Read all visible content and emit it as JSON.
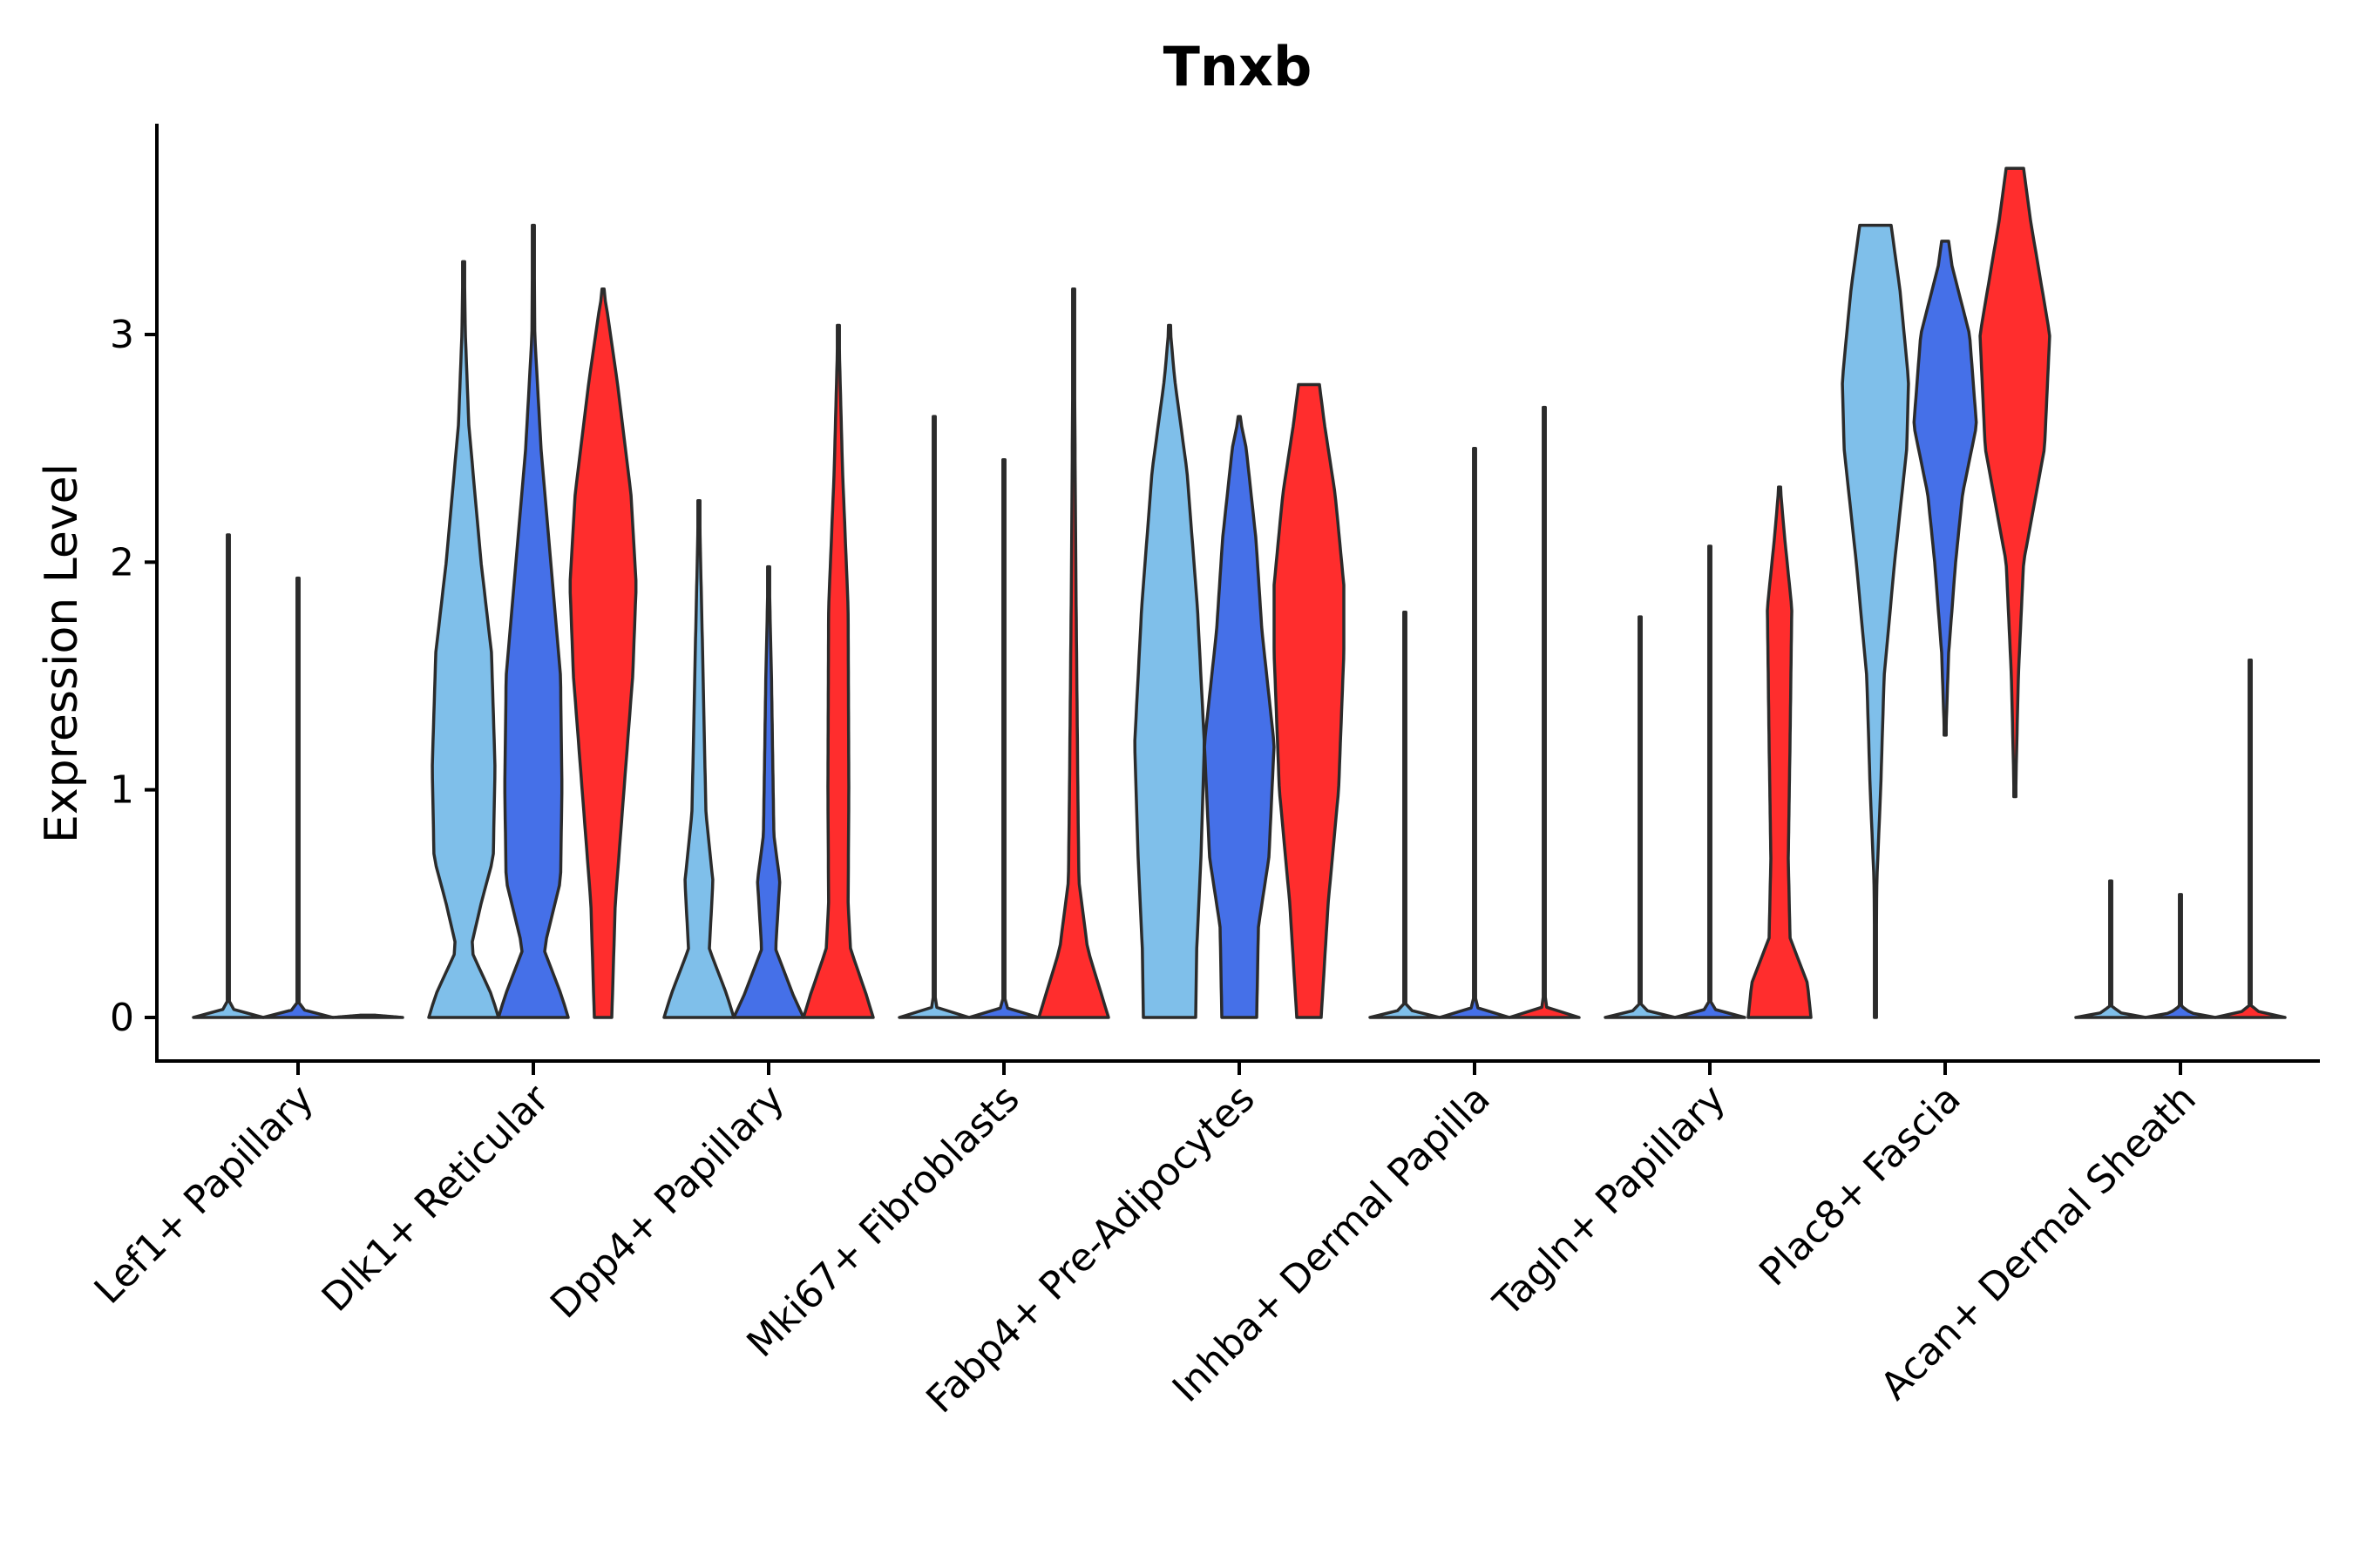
{
  "chart_data": {
    "type": "violin",
    "title": "Tnxb",
    "xlabel": "",
    "ylabel": "Expression Level",
    "ylim": [
      -0.19,
      3.92
    ],
    "yticks": [
      0,
      1,
      2,
      3
    ],
    "grid": false,
    "legend": "none",
    "series_colors": [
      "#7fbfea",
      "#4570e8",
      "#ff2d2d"
    ],
    "categories": [
      "Lef1+ Papillary",
      "Dlk1+ Reticular",
      "Dpp4+ Papillary",
      "Mki67+ Fibroblasts",
      "Fabp4+ Pre-Adipocytes",
      "Inhba+ Dermal Papilla",
      "Tagln+ Papillary",
      "Plac8+ Fascia",
      "Acan+ Dermal Sheath"
    ],
    "violins": [
      [
        {
          "min": 0,
          "max": 2.12,
          "profile": [
            [
              0,
              1.0
            ],
            [
              0.02,
              0.3
            ],
            [
              0.05,
              0.02
            ],
            [
              2.12,
              0.005
            ]
          ]
        },
        {
          "min": 0,
          "max": 1.93,
          "profile": [
            [
              0,
              1.0
            ],
            [
              0.02,
              0.3
            ],
            [
              0.05,
              0.02
            ],
            [
              1.93,
              0.005
            ]
          ]
        },
        {
          "min": 0,
          "max": 0.01,
          "profile": [
            [
              0,
              1.0
            ],
            [
              0.01,
              0.2
            ]
          ]
        }
      ],
      [
        {
          "min": 0,
          "max": 3.32,
          "profile": [
            [
              0,
              1.0
            ],
            [
              0.1,
              0.8
            ],
            [
              0.3,
              0.2
            ],
            [
              0.5,
              0.5
            ],
            [
              0.7,
              0.85
            ],
            [
              1.1,
              0.9
            ],
            [
              1.6,
              0.8
            ],
            [
              2.0,
              0.5
            ],
            [
              2.6,
              0.15
            ],
            [
              3.0,
              0.05
            ],
            [
              3.32,
              0.02
            ]
          ]
        },
        {
          "min": 0,
          "max": 3.48,
          "profile": [
            [
              0,
              1.0
            ],
            [
              0.1,
              0.8
            ],
            [
              0.3,
              0.3
            ],
            [
              0.6,
              0.78
            ],
            [
              1.0,
              0.82
            ],
            [
              1.5,
              0.78
            ],
            [
              2.0,
              0.5
            ],
            [
              2.5,
              0.22
            ],
            [
              3.0,
              0.04
            ],
            [
              3.48,
              0.02
            ]
          ]
        },
        {
          "min": 0,
          "max": 3.2,
          "profile": [
            [
              0,
              0.25
            ],
            [
              0.5,
              0.35
            ],
            [
              1.0,
              0.6
            ],
            [
              1.5,
              0.85
            ],
            [
              1.9,
              0.95
            ],
            [
              2.3,
              0.8
            ],
            [
              2.8,
              0.4
            ],
            [
              3.1,
              0.12
            ],
            [
              3.2,
              0.0
            ]
          ]
        }
      ],
      [
        {
          "min": 0,
          "max": 2.27,
          "profile": [
            [
              0,
              1.0
            ],
            [
              0.1,
              0.8
            ],
            [
              0.3,
              0.3
            ],
            [
              0.6,
              0.4
            ],
            [
              0.9,
              0.2
            ],
            [
              1.5,
              0.12
            ],
            [
              2.27,
              0.01
            ]
          ]
        },
        {
          "min": 0,
          "max": 1.98,
          "profile": [
            [
              0,
              1.0
            ],
            [
              0.1,
              0.7
            ],
            [
              0.3,
              0.2
            ],
            [
              0.6,
              0.32
            ],
            [
              0.8,
              0.15
            ],
            [
              1.5,
              0.08
            ],
            [
              1.98,
              0.01
            ]
          ]
        },
        {
          "min": 0,
          "max": 3.04,
          "profile": [
            [
              0,
              1.0
            ],
            [
              0.1,
              0.8
            ],
            [
              0.3,
              0.35
            ],
            [
              0.5,
              0.28
            ],
            [
              1.0,
              0.3
            ],
            [
              1.8,
              0.28
            ],
            [
              2.4,
              0.12
            ],
            [
              3.04,
              0.01
            ]
          ]
        }
      ],
      [
        {
          "min": 0,
          "max": 2.64,
          "profile": [
            [
              0,
              1.0
            ],
            [
              0.02,
              0.3
            ],
            [
              0.05,
              0.02
            ],
            [
              2.64,
              0.005
            ]
          ]
        },
        {
          "min": 0,
          "max": 2.45,
          "profile": [
            [
              0,
              1.0
            ],
            [
              0.02,
              0.3
            ],
            [
              0.05,
              0.02
            ],
            [
              2.45,
              0.005
            ]
          ]
        },
        {
          "min": 0,
          "max": 3.2,
          "profile": [
            [
              0,
              1.0
            ],
            [
              0.1,
              0.8
            ],
            [
              0.3,
              0.4
            ],
            [
              0.6,
              0.15
            ],
            [
              1.0,
              0.12
            ],
            [
              2.0,
              0.06
            ],
            [
              3.2,
              0.01
            ]
          ]
        }
      ],
      [
        {
          "min": 0,
          "max": 3.04,
          "profile": [
            [
              0,
              0.75
            ],
            [
              0.3,
              0.78
            ],
            [
              0.7,
              0.9
            ],
            [
              1.2,
              1.0
            ],
            [
              1.8,
              0.8
            ],
            [
              2.4,
              0.5
            ],
            [
              2.8,
              0.15
            ],
            [
              3.04,
              0.01
            ]
          ]
        },
        {
          "min": 0,
          "max": 2.64,
          "profile": [
            [
              0,
              0.5
            ],
            [
              0.4,
              0.55
            ],
            [
              0.7,
              0.85
            ],
            [
              1.2,
              1.0
            ],
            [
              1.7,
              0.65
            ],
            [
              2.1,
              0.48
            ],
            [
              2.5,
              0.2
            ],
            [
              2.64,
              0.01
            ]
          ]
        },
        {
          "min": 0,
          "max": 2.78,
          "profile": [
            [
              0,
              0.35
            ],
            [
              0.5,
              0.55
            ],
            [
              1.0,
              0.85
            ],
            [
              1.6,
              1.0
            ],
            [
              1.9,
              1.0
            ],
            [
              2.3,
              0.75
            ],
            [
              2.6,
              0.45
            ],
            [
              2.78,
              0.3
            ]
          ]
        }
      ],
      [
        {
          "min": 0,
          "max": 1.78,
          "profile": [
            [
              0,
              1.0
            ],
            [
              0.02,
              0.3
            ],
            [
              0.05,
              0.02
            ],
            [
              1.78,
              0.005
            ]
          ]
        },
        {
          "min": 0,
          "max": 2.5,
          "profile": [
            [
              0,
              1.0
            ],
            [
              0.02,
              0.3
            ],
            [
              0.05,
              0.02
            ],
            [
              2.5,
              0.005
            ]
          ]
        },
        {
          "min": 0,
          "max": 2.68,
          "profile": [
            [
              0,
              1.0
            ],
            [
              0.02,
              0.3
            ],
            [
              0.05,
              0.02
            ],
            [
              2.68,
              0.005
            ]
          ]
        }
      ],
      [
        {
          "min": 0,
          "max": 1.76,
          "profile": [
            [
              0,
              1.0
            ],
            [
              0.02,
              0.3
            ],
            [
              0.05,
              0.02
            ],
            [
              1.76,
              0.005
            ]
          ]
        },
        {
          "min": 0,
          "max": 2.07,
          "profile": [
            [
              0,
              1.0
            ],
            [
              0.02,
              0.3
            ],
            [
              0.05,
              0.02
            ],
            [
              2.07,
              0.005
            ]
          ]
        },
        {
          "min": 0,
          "max": 2.33,
          "profile": [
            [
              0,
              0.9
            ],
            [
              0.15,
              0.8
            ],
            [
              0.35,
              0.3
            ],
            [
              0.7,
              0.25
            ],
            [
              1.2,
              0.3
            ],
            [
              1.8,
              0.35
            ],
            [
              2.1,
              0.15
            ],
            [
              2.33,
              0.02
            ]
          ]
        }
      ],
      [
        {
          "min": 0,
          "max": 3.48,
          "profile": [
            [
              0,
              0.01
            ],
            [
              0.6,
              0.04
            ],
            [
              1.0,
              0.15
            ],
            [
              1.5,
              0.25
            ],
            [
              2.0,
              0.55
            ],
            [
              2.5,
              0.9
            ],
            [
              2.8,
              0.95
            ],
            [
              3.2,
              0.7
            ],
            [
              3.48,
              0.45
            ]
          ]
        },
        {
          "min": 1.24,
          "max": 3.41,
          "profile": [
            [
              1.24,
              0.02
            ],
            [
              1.6,
              0.1
            ],
            [
              2.0,
              0.3
            ],
            [
              2.3,
              0.5
            ],
            [
              2.6,
              0.9
            ],
            [
              3.0,
              0.7
            ],
            [
              3.3,
              0.2
            ],
            [
              3.41,
              0.1
            ]
          ]
        },
        {
          "min": 0.97,
          "max": 3.73,
          "profile": [
            [
              0.97,
              0.02
            ],
            [
              1.5,
              0.1
            ],
            [
              2.0,
              0.25
            ],
            [
              2.5,
              0.85
            ],
            [
              3.0,
              1.0
            ],
            [
              3.5,
              0.45
            ],
            [
              3.73,
              0.25
            ]
          ]
        }
      ],
      [
        {
          "min": 0,
          "max": 0.6,
          "profile": [
            [
              0,
              1.0
            ],
            [
              0.02,
              0.3
            ],
            [
              0.05,
              0.02
            ],
            [
              0.6,
              0.005
            ]
          ]
        },
        {
          "min": 0,
          "max": 0.54,
          "profile": [
            [
              0,
              1.0
            ],
            [
              0.02,
              0.3
            ],
            [
              0.05,
              0.02
            ],
            [
              0.54,
              0.005
            ]
          ]
        },
        {
          "min": 0,
          "max": 1.57,
          "profile": [
            [
              0,
              1.0
            ],
            [
              0.02,
              0.3
            ],
            [
              0.05,
              0.02
            ],
            [
              1.57,
              0.005
            ]
          ]
        }
      ]
    ]
  }
}
